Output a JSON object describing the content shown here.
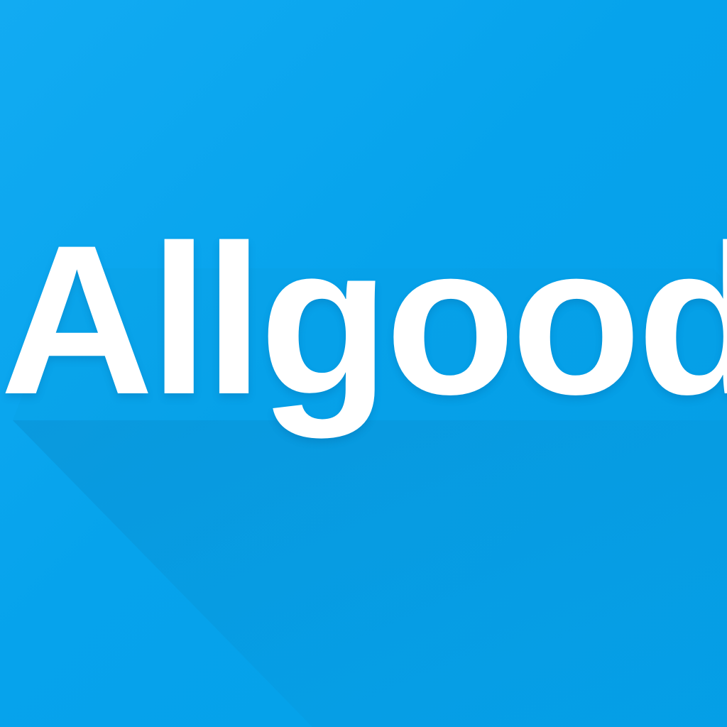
{
  "logo": {
    "wordmark": "Allgood"
  },
  "colors": {
    "background": "#0aa6ee",
    "text": "#ffffff",
    "shadow": "#0a8fd0"
  }
}
